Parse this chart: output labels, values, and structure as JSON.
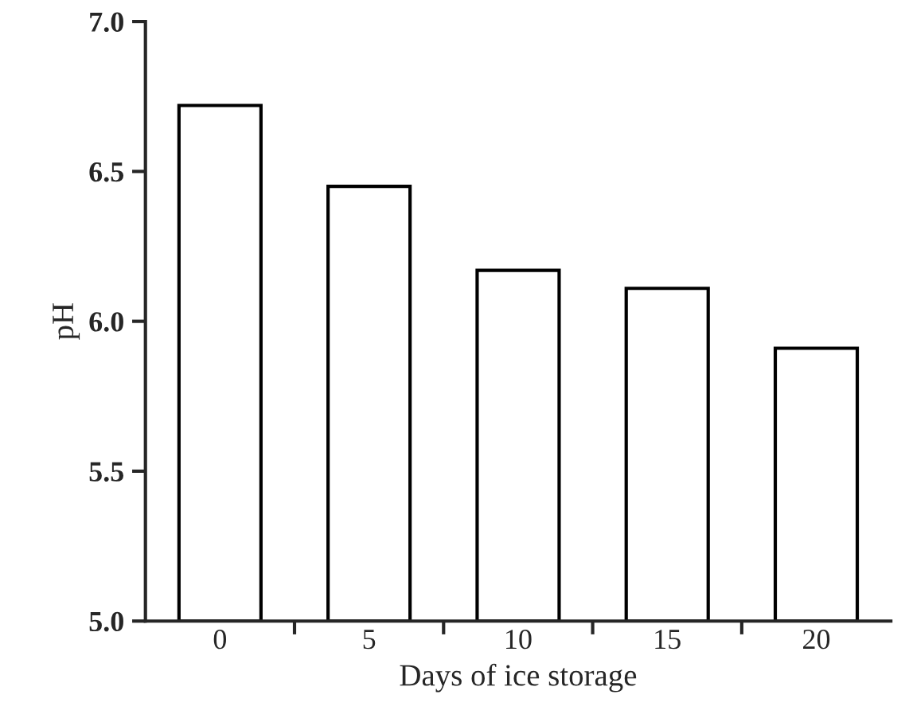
{
  "chart_data": {
    "type": "bar",
    "xlabel": "Days of ice storage",
    "ylabel": "pH",
    "categories": [
      "0",
      "5",
      "10",
      "15",
      "20"
    ],
    "values": [
      6.72,
      6.45,
      6.17,
      6.11,
      5.91
    ],
    "color": "#ffffff",
    "ylim": [
      5.0,
      7.0
    ],
    "yticks": [
      {
        "value": 5.0,
        "label": "5.0"
      },
      {
        "value": 5.5,
        "label": "5.5"
      },
      {
        "value": 6.0,
        "label": "6.0"
      },
      {
        "value": 6.5,
        "label": "6.5"
      },
      {
        "value": 7.0,
        "label": "7.0"
      }
    ],
    "grid": false
  }
}
